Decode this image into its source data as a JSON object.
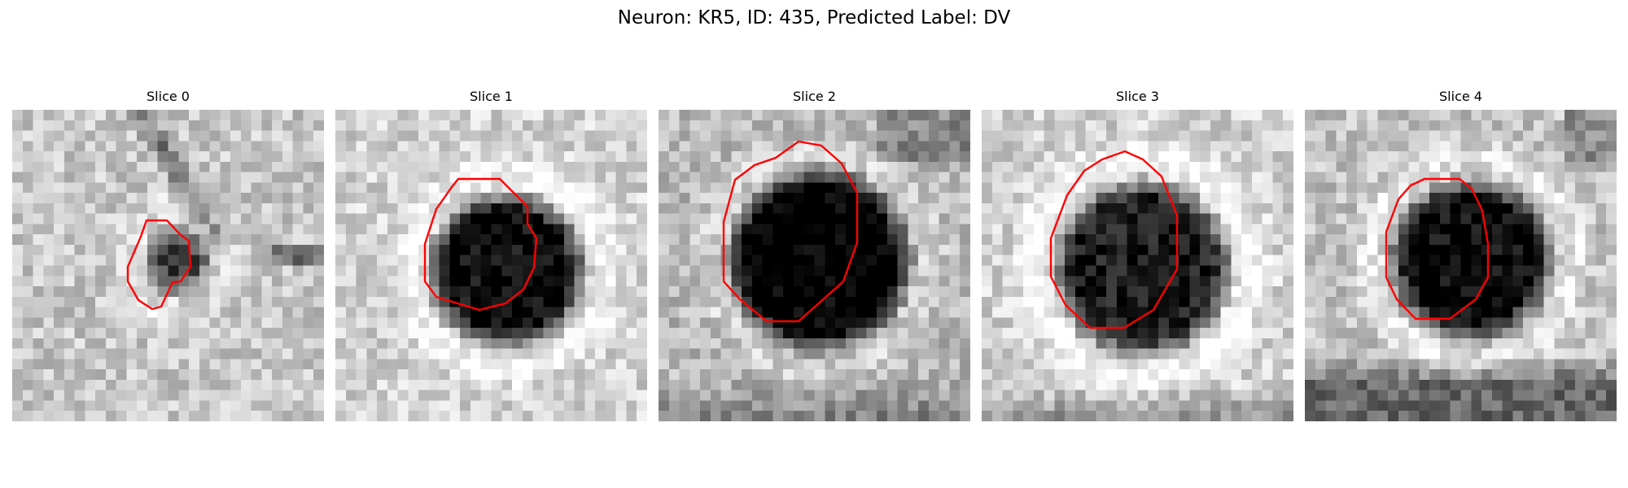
{
  "figure": {
    "title": "Neuron: KR5, ID: 435, Predicted Label: DV",
    "contour_color": "#ff0000",
    "colormap": "gray"
  },
  "slices": [
    {
      "label": "Slice 0"
    },
    {
      "label": "Slice 1"
    },
    {
      "label": "Slice 2"
    },
    {
      "label": "Slice 3"
    },
    {
      "label": "Slice 4"
    }
  ]
}
